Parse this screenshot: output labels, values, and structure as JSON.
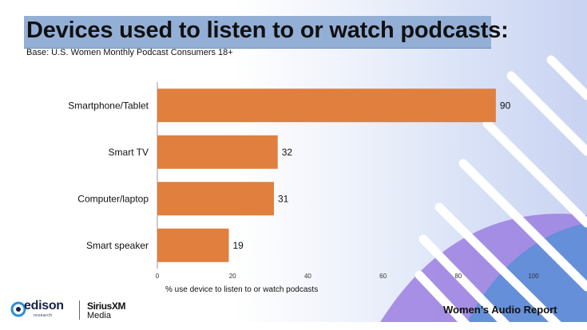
{
  "colors": {
    "bar": "#e07f3e",
    "title_bg": "#94afd6",
    "stripe": "#ffffff",
    "wave": "#5b8fd6",
    "wave2": "#9b7fe0"
  },
  "header": {
    "title": "Devices used to listen to or watch podcasts:",
    "subtitle": "Base: U.S. Women Monthly Podcast Consumers 18+"
  },
  "chart_data": {
    "type": "bar",
    "orientation": "horizontal",
    "categories": [
      "Smartphone/Tablet",
      "Smart TV",
      "Computer/laptop",
      "Smart speaker"
    ],
    "values": [
      90,
      32,
      31,
      19
    ],
    "xlabel": "% use device to listen to or watch podcasts",
    "ylabel": "",
    "xlim": [
      0,
      100
    ],
    "xticks": [
      "0",
      "20",
      "40",
      "60",
      "80",
      "100"
    ],
    "grid": false
  },
  "footer": {
    "logo_edison": "edison",
    "logo_edison_sub": "research",
    "logo_sxm": "SiriusXM",
    "logo_sxm_sub": "Media",
    "report": "Women’s Audio Report"
  }
}
